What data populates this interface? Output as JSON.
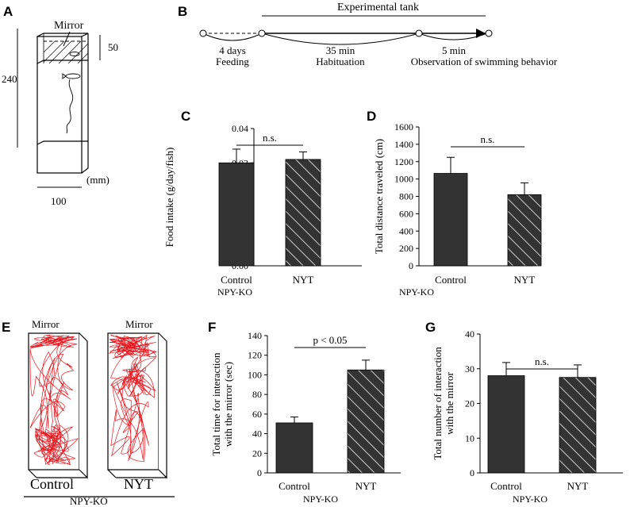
{
  "panel_letters": {
    "A": "A",
    "B": "B",
    "C": "C",
    "D": "D",
    "E": "E",
    "F": "F",
    "G": "G"
  },
  "panel_A": {
    "mirror_label": "Mirror",
    "dim_height": "240",
    "dim_mirror_zone": "50",
    "dim_width": "100",
    "unit": "(mm)"
  },
  "panel_B": {
    "tank_label": "Experimental tank",
    "steps": [
      {
        "duration": "4 days",
        "label": "Feeding"
      },
      {
        "duration": "35 min",
        "label": "Habituation"
      },
      {
        "duration": "5 min",
        "label": "Observation of swimming behavior"
      }
    ]
  },
  "panel_E": {
    "mirror_left": "Mirror",
    "mirror_right": "Mirror",
    "label_left": "Control",
    "label_right": "NYT",
    "group": "NPY-KO",
    "track_color": "#e8141b"
  },
  "colors": {
    "control_bar": "#333333",
    "nyt_bar_hatch": "#333333",
    "hatch_line": "#ffffff"
  },
  "chart_data": [
    {
      "panel": "C",
      "type": "bar",
      "categories": [
        "Control",
        "NYT"
      ],
      "values": [
        0.03,
        0.031
      ],
      "errors": [
        0.004,
        0.0022
      ],
      "ylabel": "Food intake (g/day/fish)",
      "xlabel": "NPY-KO",
      "ylim": [
        0,
        0.04
      ],
      "yticks": [
        "0.00",
        "0.01",
        "0.02",
        "0.03",
        "0.04"
      ],
      "significance": "n.s."
    },
    {
      "panel": "D",
      "type": "bar",
      "categories": [
        "Control",
        "NYT"
      ],
      "values": [
        1065,
        820
      ],
      "errors": [
        185,
        135
      ],
      "ylabel": "Total distance traveled (cm)",
      "xlabel": "NPY-KO",
      "ylim": [
        0,
        1600
      ],
      "yticks": [
        "0",
        "200",
        "400",
        "600",
        "800",
        "1000",
        "1200",
        "1400",
        "1600"
      ],
      "significance": "n.s."
    },
    {
      "panel": "F",
      "type": "bar",
      "categories": [
        "Control",
        "NYT"
      ],
      "values": [
        51,
        105
      ],
      "errors": [
        6,
        10
      ],
      "ylabel": "Total time for interaction with the mirror (sec)",
      "ylabel_lines": [
        "Total time for interaction",
        "with the mirror (sec)"
      ],
      "xlabel": "NPY-KO",
      "ylim": [
        0,
        140
      ],
      "yticks": [
        "0",
        "20",
        "40",
        "60",
        "80",
        "100",
        "120",
        "140"
      ],
      "significance": "p < 0.05"
    },
    {
      "panel": "G",
      "type": "bar",
      "categories": [
        "Control",
        "NYT"
      ],
      "values": [
        28,
        27.5
      ],
      "errors": [
        3.8,
        3.6
      ],
      "ylabel": "Total number of interaction with the mirror",
      "ylabel_lines": [
        "Total number of interaction",
        "with the mirror"
      ],
      "xlabel": "NPY-KO",
      "ylim": [
        0,
        40
      ],
      "yticks": [
        "0",
        "10",
        "20",
        "30",
        "40"
      ],
      "significance": "n.s."
    }
  ]
}
